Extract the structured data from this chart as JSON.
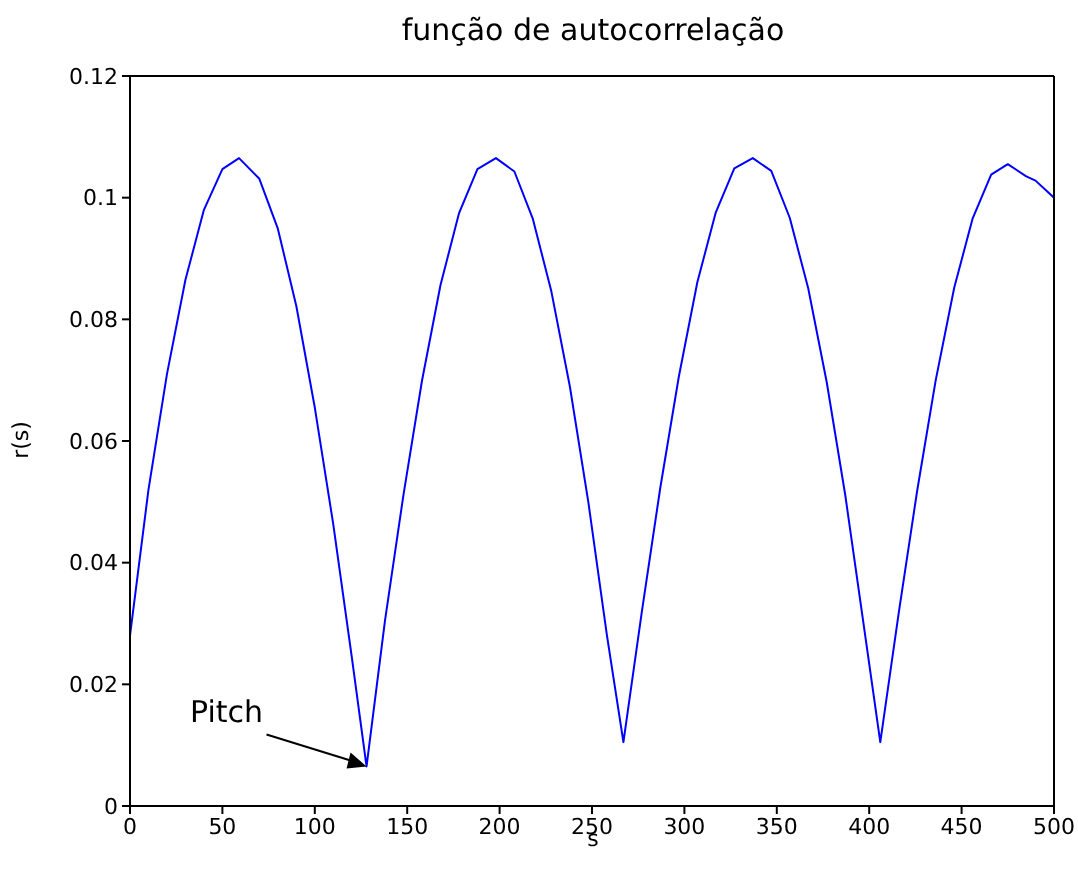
{
  "chart_data": {
    "type": "line",
    "title": "função de autocorrelação",
    "xlabel": "s",
    "ylabel": "r(s)",
    "x": [
      0,
      10,
      20,
      30,
      40,
      50,
      59,
      70,
      80,
      90,
      100,
      110,
      120,
      128,
      138,
      148,
      158,
      168,
      178,
      188,
      198,
      208,
      218,
      228,
      238,
      248,
      258,
      267,
      277,
      287,
      297,
      307,
      317,
      327,
      337,
      347,
      357,
      367,
      377,
      387,
      397,
      406,
      416,
      426,
      436,
      446,
      456,
      466,
      475,
      485,
      490,
      500
    ],
    "series": [
      {
        "color": "#0000ff",
        "values": [
          0.028,
          0.052,
          0.071,
          0.0865,
          0.098,
          0.1047,
          0.1065,
          0.1031,
          0.0949,
          0.0822,
          0.0655,
          0.0463,
          0.0245,
          0.0065,
          0.0305,
          0.0512,
          0.0699,
          0.0856,
          0.0974,
          0.1047,
          0.1065,
          0.1043,
          0.0965,
          0.0846,
          0.069,
          0.05,
          0.0282,
          0.0105,
          0.032,
          0.0524,
          0.0706,
          0.0861,
          0.0976,
          0.1048,
          0.1065,
          0.1044,
          0.0967,
          0.0851,
          0.0697,
          0.0512,
          0.0298,
          0.0105,
          0.0318,
          0.0519,
          0.07,
          0.0852,
          0.0966,
          0.1038,
          0.1055,
          0.1035,
          0.1028,
          0.1
        ]
      }
    ],
    "xlim": [
      0,
      500
    ],
    "xticks": [
      0,
      50,
      100,
      150,
      200,
      250,
      300,
      350,
      400,
      450,
      500
    ],
    "ylim": [
      0,
      0.12
    ],
    "yticks": [
      0,
      0.02,
      0.04,
      0.06,
      0.08,
      0.1,
      0.12
    ],
    "annotations": [
      {
        "text": "Pitch",
        "x": 128,
        "y": 0.0065
      }
    ],
    "grid": false,
    "legend": false,
    "marker": "none",
    "line_style": "solid"
  }
}
